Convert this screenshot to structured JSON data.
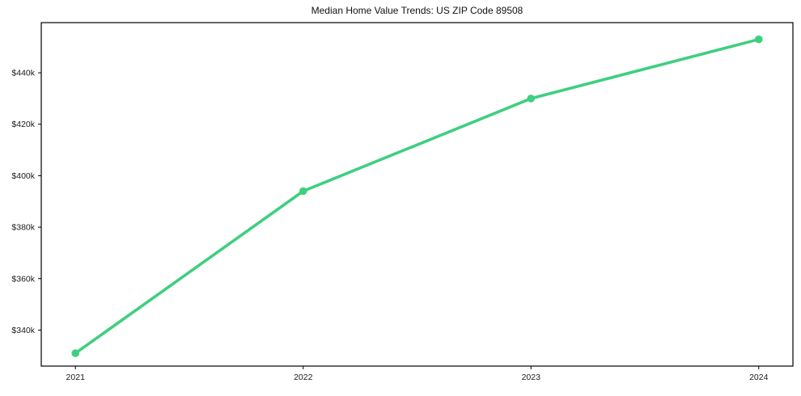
{
  "chart_data": {
    "type": "line",
    "title": "Median Home Value Trends: US ZIP Code 89508",
    "x": [
      2021,
      2022,
      2023,
      2024
    ],
    "xtick_labels": [
      "2021",
      "2022",
      "2023",
      "2024"
    ],
    "series": [
      {
        "name": "Median Home Value",
        "values": [
          331000,
          394000,
          430000,
          453000
        ]
      }
    ],
    "ytick_values": [
      340000,
      360000,
      380000,
      400000,
      420000,
      440000
    ],
    "ytick_labels": [
      "$340k",
      "$360k",
      "$380k",
      "$400k",
      "$420k",
      "$440k"
    ],
    "xlim": [
      2020.85,
      2024.15
    ],
    "ylim": [
      326000,
      459500
    ],
    "grid": false,
    "legend": "none",
    "line_color": "#3ecf80",
    "marker": "circle",
    "axis_color": "#000000",
    "text_color": "#1a1a1a"
  }
}
